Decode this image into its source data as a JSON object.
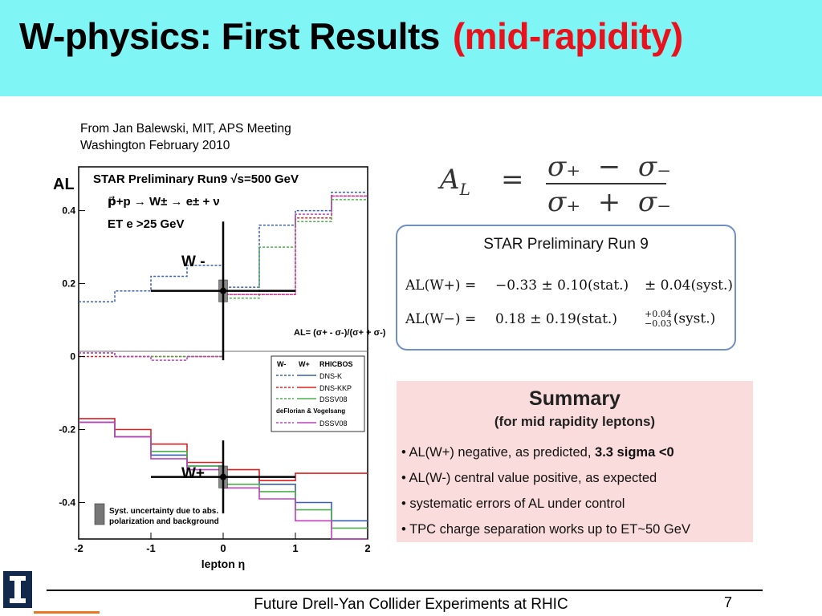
{
  "slide": {
    "title_main": "W-physics: First Results",
    "title_highlight": "(mid-rapidity)",
    "source_line1": "From Jan Balewski, MIT,  APS Meeting",
    "source_line2": "Washington February 2010",
    "footer": "Future Drell-Yan Collider Experiments at RHIC",
    "page_number": "7",
    "colors": {
      "header_bg": "#7ff5f5",
      "title_highlight": "#e8121c",
      "summary_bg": "#fbdcdc",
      "box_border": "#6f8fc5"
    }
  },
  "formula": {
    "lhs": "A",
    "lhs_sub": "L",
    "eq": "=",
    "num": "σ₊  −  σ₋",
    "den": "σ₊  +  σ₋"
  },
  "results": {
    "title": "STAR Preliminary Run 9",
    "row1": {
      "label": "AL(W+) =",
      "value": "−0.33 ± 0.10(stat.)",
      "syst": "± 0.04(syst.)"
    },
    "row2": {
      "label": "AL(W−) =",
      "value": "0.18 ± 0.19(stat.)",
      "syst_up": "+0.04",
      "syst_down": "−0.03",
      "syst_label": "(syst.)"
    }
  },
  "summary": {
    "title": "Summary",
    "subtitle": "(for mid rapidity leptons)",
    "b1_text": "• AL(W+)  negative, as predicted, ",
    "b1_bold": "3.3 sigma <0",
    "b2_text": "• AL(W-) central value positive,   as expected",
    "b3_text": "• systematic errors of AL under control",
    "b4_text": "• TPC  charge separation works up to ET~50 GeV"
  },
  "chart_data": {
    "type": "line",
    "title": "STAR  Preliminary  Run9  √s=500 GeV",
    "subtitle_line1": "p⃗+p → W± → e± + ν",
    "subtitle_line2": "ET e >25 GeV",
    "xlabel": "lepton η",
    "ylabel": "AL",
    "xlim": [
      -2,
      2
    ],
    "ylim": [
      -0.5,
      0.52
    ],
    "x_ticks": [
      "-2",
      "-1",
      "0",
      "1",
      "2"
    ],
    "y_ticks": [
      "0.4",
      "0.2",
      "0",
      "-0.2",
      "-0.4"
    ],
    "x_tick_values": [
      -2,
      -1,
      0,
      1,
      2
    ],
    "y_tick_values": [
      0.4,
      0.2,
      0,
      -0.2,
      -0.4
    ],
    "bin_edges": [
      -2,
      -1.5,
      -1,
      -0.5,
      0,
      0.5,
      1,
      1.5,
      2
    ],
    "inset_formula": "AL= (σ+ - σ-)/(σ+ + σ-)",
    "label_wminus": "W -",
    "label_wplus": "W+",
    "legend_header": [
      "W-",
      "W+",
      "RHICBOS"
    ],
    "legend_entries": [
      "DNS-K",
      "DNS-KKP",
      "DSSV08",
      "deFlorian & Vogelsang",
      "DSSV08"
    ],
    "legend_placement": "lower-right",
    "syst_note_line1": "Syst. uncertainty due to abs.",
    "syst_note_line2": "polarization and background",
    "series": [
      {
        "name": "W- DNS-K",
        "color": "#3a5fb0",
        "dashed": true,
        "values": [
          0.15,
          0.18,
          0.22,
          0.25,
          0.19,
          0.36,
          0.4,
          0.45
        ]
      },
      {
        "name": "W- DNS-KKP",
        "color": "#e02020",
        "dashed": true,
        "values": [
          0.0,
          0.0,
          0.0,
          0.0,
          0.17,
          0.17,
          0.38,
          0.44
        ]
      },
      {
        "name": "W- DSSV08",
        "color": "#4bb04b",
        "dashed": true,
        "values": [
          0.01,
          0.0,
          0.0,
          0.0,
          0.16,
          0.3,
          0.37,
          0.43
        ]
      },
      {
        "name": "W- deFlorian & Vogelsang DSSV08",
        "color": "#c040c0",
        "dashed": true,
        "values": [
          0.01,
          0.0,
          -0.01,
          0.0,
          0.17,
          0.17,
          0.39,
          0.44
        ]
      },
      {
        "name": "W+ DNS-K",
        "color": "#3a5fb0",
        "dashed": false,
        "values": [
          -0.18,
          -0.22,
          -0.27,
          -0.3,
          -0.33,
          -0.35,
          -0.4,
          -0.45
        ]
      },
      {
        "name": "W+ DNS-KKP",
        "color": "#e02020",
        "dashed": false,
        "values": [
          -0.17,
          -0.2,
          -0.24,
          -0.29,
          -0.31,
          -0.34,
          -0.32,
          -0.32
        ]
      },
      {
        "name": "W+ DSSV08",
        "color": "#4bb04b",
        "dashed": false,
        "values": [
          -0.18,
          -0.22,
          -0.26,
          -0.3,
          -0.35,
          -0.37,
          -0.42,
          -0.47
        ]
      },
      {
        "name": "W+ deFlorian DSSV08",
        "color": "#c040c0",
        "dashed": false,
        "values": [
          -0.18,
          -0.22,
          -0.28,
          -0.31,
          -0.36,
          -0.39,
          -0.45,
          -0.5
        ]
      }
    ],
    "data_points": [
      {
        "name": "W-",
        "x": 0,
        "y": 0.18,
        "x_err": 1.0,
        "y_err": 0.19
      },
      {
        "name": "W+",
        "x": 0,
        "y": -0.33,
        "x_err": 1.0,
        "y_err": 0.1
      }
    ]
  }
}
